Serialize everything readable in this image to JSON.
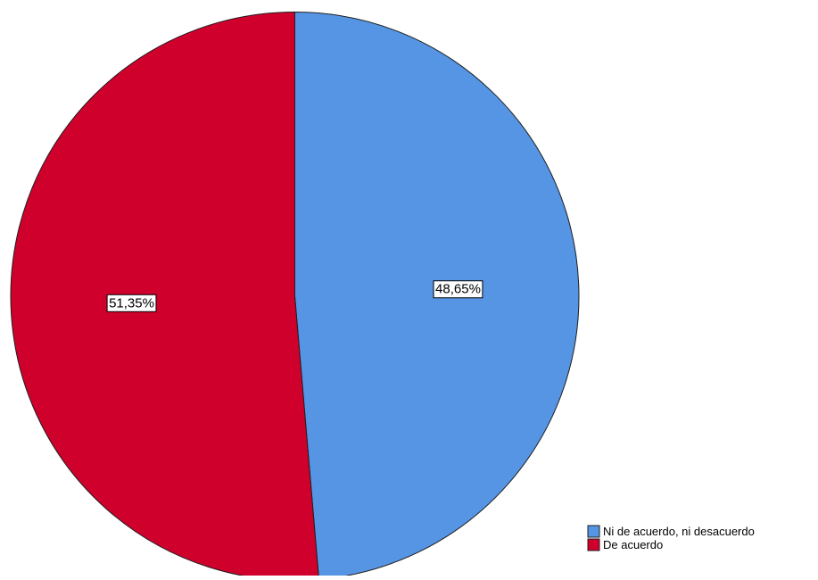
{
  "chart_data": {
    "type": "pie",
    "title": "",
    "slices": [
      {
        "label": "Ni de acuerdo, ni desacuerdo",
        "value": 48.65,
        "display": "48,65%",
        "color": "#5595e4"
      },
      {
        "label": "De acuerdo",
        "value": 51.35,
        "display": "51,35%",
        "color": "#d0002c"
      }
    ],
    "start_angle_deg": 0,
    "direction": "clockwise",
    "legend": {
      "position": "bottom-right",
      "entries": [
        "Ni de acuerdo, ni desacuerdo",
        "De acuerdo"
      ]
    },
    "outline_color": "#1f1f1f"
  }
}
